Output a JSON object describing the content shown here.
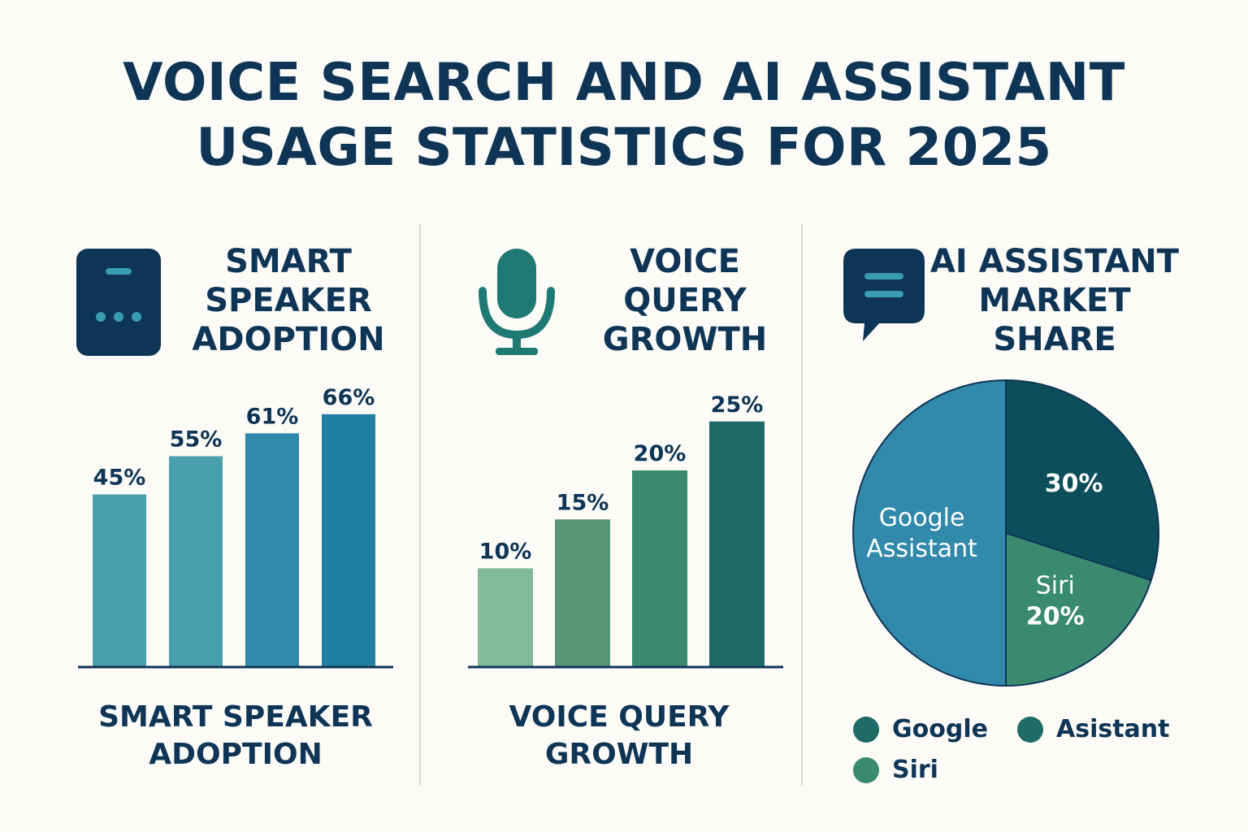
{
  "title": {
    "line1": "VOICE SEARCH AND AI ASSISTANT",
    "line2": "USAGE STATISTICS FOR 2025"
  },
  "icons": {
    "panel1": "smart-speaker-icon",
    "panel2": "microphone-icon",
    "panel3": "chat-bubble-icon"
  },
  "panels": {
    "speaker": {
      "heading": [
        "SMART",
        "SPEAKER",
        "ADOPTION"
      ],
      "footer": [
        "SMART SPEAKER",
        "ADOPTION"
      ]
    },
    "voice": {
      "heading": [
        "VOICE",
        "QUERY",
        "GROWTH"
      ],
      "footer": [
        "VOICE QUERY",
        "GROWTH"
      ]
    },
    "market": {
      "heading": [
        "AI ASSISTANT",
        "MARKET",
        "SHARE"
      ]
    }
  },
  "chart_data": [
    {
      "type": "bar",
      "title": "SMART SPEAKER ADOPTION",
      "values": [
        45,
        55,
        61,
        66
      ],
      "labels": [
        "45%",
        "55%",
        "61%",
        "66%"
      ],
      "colors": [
        "#4a9fae",
        "#4a9fae",
        "#3189ab",
        "#237fa1"
      ]
    },
    {
      "type": "bar",
      "title": "VOICE QUERY GROWTH",
      "values": [
        10,
        15,
        20,
        25
      ],
      "labels": [
        "10%",
        "15%",
        "20%",
        "25%"
      ],
      "colors": [
        "#82b996",
        "#579578",
        "#3a8a6f",
        "#1f6b67"
      ]
    },
    {
      "type": "pie",
      "title": "AI ASSISTANT MARKET SHARE",
      "slices": [
        {
          "label": "",
          "value": 30,
          "value_label": "30%",
          "color": "#0c4f5b"
        },
        {
          "label": "Siri",
          "value": 20,
          "value_label": "20%",
          "color": "#3a8a6f"
        },
        {
          "label": "Google Assistant",
          "value": 50,
          "value_label": "",
          "color": "#3189ab"
        }
      ],
      "legend": [
        {
          "label": "Google",
          "color": "#1f6b67"
        },
        {
          "label": "Asistant",
          "color": "#1f6b67"
        },
        {
          "label": "Siri",
          "color": "#3a8a6f"
        }
      ]
    }
  ]
}
